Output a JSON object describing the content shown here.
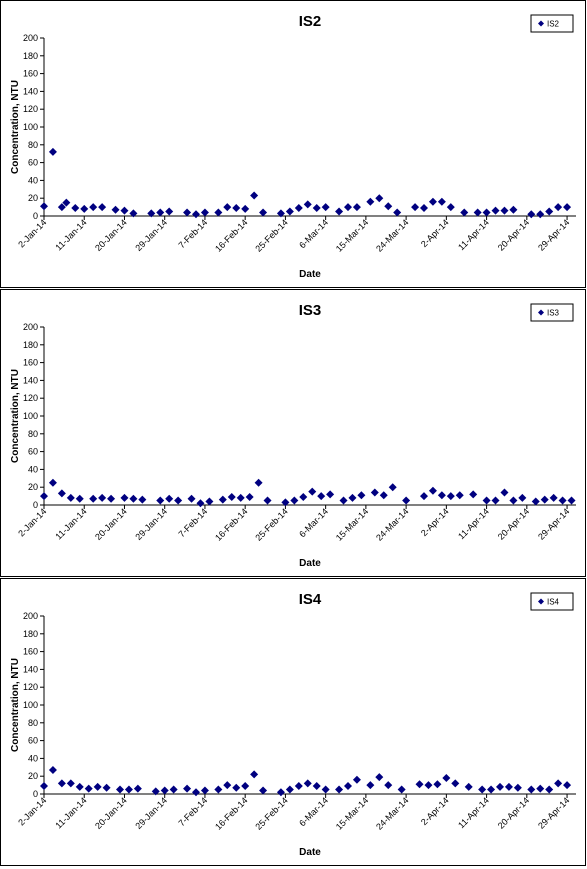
{
  "chart_data": [
    {
      "type": "scatter",
      "title": "IS2",
      "xlabel": "Date",
      "ylabel": "Concentration, NTU",
      "ylim": [
        0,
        200
      ],
      "yticks": [
        0,
        20,
        40,
        60,
        80,
        100,
        120,
        140,
        160,
        180,
        200
      ],
      "xlim": [
        "2014-01-02",
        "2014-05-01"
      ],
      "xtick_labels": [
        "2-Jan-14",
        "11-Jan-14",
        "20-Jan-14",
        "29-Jan-14",
        "7-Feb-14",
        "16-Feb-14",
        "25-Feb-14",
        "6-Mar-14",
        "15-Mar-14",
        "24-Mar-14",
        "2-Apr-14",
        "11-Apr-14",
        "20-Apr-14",
        "29-Apr-14"
      ],
      "legend": "top-right",
      "color": "#000080",
      "series": [
        {
          "name": "IS2",
          "points": [
            [
              "2014-01-02",
              11
            ],
            [
              "2014-01-04",
              72
            ],
            [
              "2014-01-06",
              10
            ],
            [
              "2014-01-07",
              15
            ],
            [
              "2014-01-09",
              9
            ],
            [
              "2014-01-11",
              8
            ],
            [
              "2014-01-13",
              10
            ],
            [
              "2014-01-15",
              10
            ],
            [
              "2014-01-18",
              7
            ],
            [
              "2014-01-20",
              6
            ],
            [
              "2014-01-22",
              3
            ],
            [
              "2014-01-26",
              3
            ],
            [
              "2014-01-28",
              4
            ],
            [
              "2014-01-30",
              5
            ],
            [
              "2014-02-03",
              4
            ],
            [
              "2014-02-05",
              2
            ],
            [
              "2014-02-07",
              4
            ],
            [
              "2014-02-10",
              4
            ],
            [
              "2014-02-12",
              10
            ],
            [
              "2014-02-14",
              9
            ],
            [
              "2014-02-16",
              8
            ],
            [
              "2014-02-18",
              23
            ],
            [
              "2014-02-20",
              4
            ],
            [
              "2014-02-24",
              3
            ],
            [
              "2014-02-26",
              5
            ],
            [
              "2014-02-28",
              9
            ],
            [
              "2014-03-02",
              13
            ],
            [
              "2014-03-04",
              9
            ],
            [
              "2014-03-06",
              10
            ],
            [
              "2014-03-09",
              5
            ],
            [
              "2014-03-11",
              10
            ],
            [
              "2014-03-13",
              10
            ],
            [
              "2014-03-16",
              16
            ],
            [
              "2014-03-18",
              20
            ],
            [
              "2014-03-20",
              11
            ],
            [
              "2014-03-22",
              4
            ],
            [
              "2014-03-26",
              10
            ],
            [
              "2014-03-28",
              9
            ],
            [
              "2014-03-30",
              16
            ],
            [
              "2014-04-01",
              16
            ],
            [
              "2014-04-03",
              10
            ],
            [
              "2014-04-06",
              4
            ],
            [
              "2014-04-09",
              4
            ],
            [
              "2014-04-11",
              4
            ],
            [
              "2014-04-13",
              6
            ],
            [
              "2014-04-15",
              6
            ],
            [
              "2014-04-17",
              7
            ],
            [
              "2014-04-21",
              2
            ],
            [
              "2014-04-23",
              2
            ],
            [
              "2014-04-25",
              5
            ],
            [
              "2014-04-27",
              10
            ],
            [
              "2014-04-29",
              10
            ]
          ]
        }
      ]
    },
    {
      "type": "scatter",
      "title": "IS3",
      "xlabel": "Date",
      "ylabel": "Concentration, NTU",
      "ylim": [
        0,
        200
      ],
      "yticks": [
        0,
        20,
        40,
        60,
        80,
        100,
        120,
        140,
        160,
        180,
        200
      ],
      "xlim": [
        "2014-01-02",
        "2014-05-01"
      ],
      "xtick_labels": [
        "2-Jan-14",
        "11-Jan-14",
        "20-Jan-14",
        "29-Jan-14",
        "7-Feb-14",
        "16-Feb-14",
        "25-Feb-14",
        "6-Mar-14",
        "15-Mar-14",
        "24-Mar-14",
        "2-Apr-14",
        "11-Apr-14",
        "20-Apr-14",
        "29-Apr-14"
      ],
      "legend": "top-right",
      "color": "#000080",
      "series": [
        {
          "name": "IS3",
          "points": [
            [
              "2014-01-02",
              10
            ],
            [
              "2014-01-04",
              25
            ],
            [
              "2014-01-06",
              13
            ],
            [
              "2014-01-08",
              8
            ],
            [
              "2014-01-10",
              7
            ],
            [
              "2014-01-13",
              7
            ],
            [
              "2014-01-15",
              8
            ],
            [
              "2014-01-17",
              7
            ],
            [
              "2014-01-20",
              8
            ],
            [
              "2014-01-22",
              7
            ],
            [
              "2014-01-24",
              6
            ],
            [
              "2014-01-28",
              5
            ],
            [
              "2014-01-30",
              7
            ],
            [
              "2014-02-01",
              5
            ],
            [
              "2014-02-04",
              7
            ],
            [
              "2014-02-06",
              2
            ],
            [
              "2014-02-08",
              4
            ],
            [
              "2014-02-11",
              6
            ],
            [
              "2014-02-13",
              9
            ],
            [
              "2014-02-15",
              8
            ],
            [
              "2014-02-17",
              9
            ],
            [
              "2014-02-19",
              25
            ],
            [
              "2014-02-21",
              5
            ],
            [
              "2014-02-25",
              3
            ],
            [
              "2014-02-27",
              5
            ],
            [
              "2014-03-01",
              9
            ],
            [
              "2014-03-03",
              15
            ],
            [
              "2014-03-05",
              10
            ],
            [
              "2014-03-07",
              12
            ],
            [
              "2014-03-10",
              5
            ],
            [
              "2014-03-12",
              8
            ],
            [
              "2014-03-14",
              11
            ],
            [
              "2014-03-17",
              14
            ],
            [
              "2014-03-19",
              11
            ],
            [
              "2014-03-21",
              20
            ],
            [
              "2014-03-24",
              5
            ],
            [
              "2014-03-28",
              10
            ],
            [
              "2014-03-30",
              16
            ],
            [
              "2014-04-01",
              11
            ],
            [
              "2014-04-03",
              10
            ],
            [
              "2014-04-05",
              11
            ],
            [
              "2014-04-08",
              12
            ],
            [
              "2014-04-11",
              5
            ],
            [
              "2014-04-13",
              5
            ],
            [
              "2014-04-15",
              14
            ],
            [
              "2014-04-17",
              5
            ],
            [
              "2014-04-19",
              8
            ],
            [
              "2014-04-22",
              4
            ],
            [
              "2014-04-24",
              6
            ],
            [
              "2014-04-26",
              8
            ],
            [
              "2014-04-28",
              5
            ],
            [
              "2014-04-30",
              5
            ]
          ]
        }
      ]
    },
    {
      "type": "scatter",
      "title": "IS4",
      "xlabel": "Date",
      "ylabel": "Concentration, NTU",
      "ylim": [
        0,
        200
      ],
      "yticks": [
        0,
        20,
        40,
        60,
        80,
        100,
        120,
        140,
        160,
        180,
        200
      ],
      "xlim": [
        "2014-01-02",
        "2014-05-01"
      ],
      "xtick_labels": [
        "2-Jan-14",
        "11-Jan-14",
        "20-Jan-14",
        "29-Jan-14",
        "7-Feb-14",
        "16-Feb-14",
        "25-Feb-14",
        "6-Mar-14",
        "15-Mar-14",
        "24-Mar-14",
        "2-Apr-14",
        "11-Apr-14",
        "20-Apr-14",
        "29-Apr-14"
      ],
      "legend": "top-right",
      "color": "#000080",
      "series": [
        {
          "name": "IS4",
          "points": [
            [
              "2014-01-02",
              9
            ],
            [
              "2014-01-04",
              27
            ],
            [
              "2014-01-06",
              12
            ],
            [
              "2014-01-08",
              12
            ],
            [
              "2014-01-10",
              8
            ],
            [
              "2014-01-12",
              6
            ],
            [
              "2014-01-14",
              8
            ],
            [
              "2014-01-16",
              7
            ],
            [
              "2014-01-19",
              5
            ],
            [
              "2014-01-21",
              5
            ],
            [
              "2014-01-23",
              6
            ],
            [
              "2014-01-27",
              3
            ],
            [
              "2014-01-29",
              4
            ],
            [
              "2014-01-31",
              5
            ],
            [
              "2014-02-03",
              6
            ],
            [
              "2014-02-05",
              2
            ],
            [
              "2014-02-07",
              4
            ],
            [
              "2014-02-10",
              5
            ],
            [
              "2014-02-12",
              10
            ],
            [
              "2014-02-14",
              7
            ],
            [
              "2014-02-16",
              9
            ],
            [
              "2014-02-18",
              22
            ],
            [
              "2014-02-20",
              4
            ],
            [
              "2014-02-24",
              2
            ],
            [
              "2014-02-26",
              5
            ],
            [
              "2014-02-28",
              9
            ],
            [
              "2014-03-02",
              12
            ],
            [
              "2014-03-04",
              9
            ],
            [
              "2014-03-06",
              5
            ],
            [
              "2014-03-09",
              5
            ],
            [
              "2014-03-11",
              9
            ],
            [
              "2014-03-13",
              16
            ],
            [
              "2014-03-16",
              10
            ],
            [
              "2014-03-18",
              19
            ],
            [
              "2014-03-20",
              10
            ],
            [
              "2014-03-23",
              5
            ],
            [
              "2014-03-27",
              11
            ],
            [
              "2014-03-29",
              10
            ],
            [
              "2014-03-31",
              11
            ],
            [
              "2014-04-02",
              18
            ],
            [
              "2014-04-04",
              12
            ],
            [
              "2014-04-07",
              8
            ],
            [
              "2014-04-10",
              5
            ],
            [
              "2014-04-12",
              5
            ],
            [
              "2014-04-14",
              8
            ],
            [
              "2014-04-16",
              8
            ],
            [
              "2014-04-18",
              7
            ],
            [
              "2014-04-21",
              5
            ],
            [
              "2014-04-23",
              6
            ],
            [
              "2014-04-25",
              5
            ],
            [
              "2014-04-27",
              12
            ],
            [
              "2014-04-29",
              10
            ]
          ]
        }
      ]
    }
  ]
}
